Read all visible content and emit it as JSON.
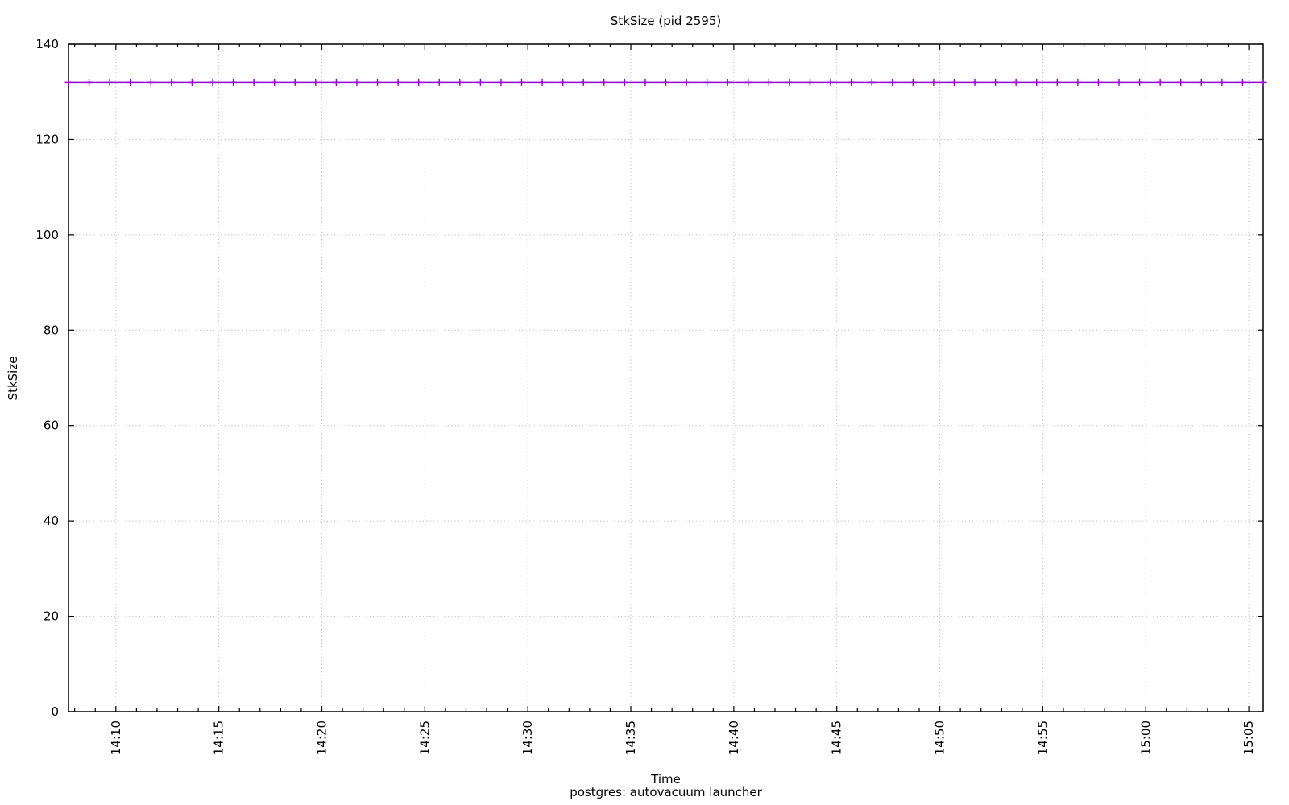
{
  "page": {
    "background_color": "#ffffff",
    "axis_color": "#000000",
    "text_color": "#000000"
  },
  "chart_data": {
    "type": "line",
    "title": "StkSize (pid 2595)",
    "xlabel": "Time",
    "x_sublabel": "postgres: autovacuum launcher",
    "ylabel": "StkSize",
    "legend": "none",
    "grid": {
      "style": "dotted",
      "color": "#b5b5b5",
      "major_only": true
    },
    "y_axis": {
      "range": [
        0,
        140
      ],
      "ticks": [
        0,
        20,
        40,
        60,
        80,
        100,
        120,
        140
      ],
      "tick_labels": [
        "0",
        "20",
        "40",
        "60",
        "80",
        "100",
        "120",
        "140"
      ]
    },
    "x_axis": {
      "range_minutes_after_1400": [
        7.7,
        65.7
      ],
      "major_tick_minutes": [
        10,
        15,
        20,
        25,
        30,
        35,
        40,
        45,
        50,
        55,
        60,
        65
      ],
      "major_tick_labels": [
        "14:10",
        "14:15",
        "14:20",
        "14:25",
        "14:30",
        "14:35",
        "14:40",
        "14:45",
        "14:50",
        "14:55",
        "15:00",
        "15:05"
      ],
      "minor_tick_interval_min": 1,
      "tick_label_rotation_deg": -90
    },
    "series": [
      {
        "name": "StkSize",
        "color": "#9400d3",
        "marker": "plus",
        "line_style": "solid",
        "value_constant": 132,
        "sample_interval_minutes": 1,
        "samples_start_min_after_1400": 7.7,
        "samples_end_min_after_1400": 65.7,
        "n_samples": 59
      }
    ]
  }
}
